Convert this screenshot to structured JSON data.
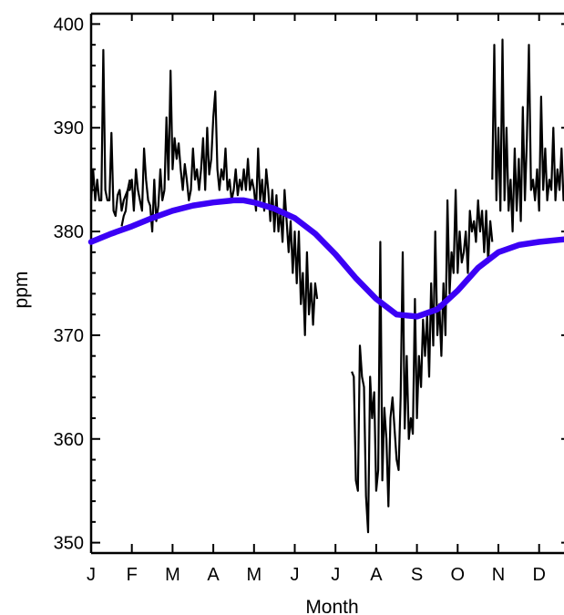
{
  "chart_data": {
    "type": "line",
    "xlabel": "Month",
    "ylabel": "ppm",
    "ylim": [
      349,
      401
    ],
    "xlim": [
      0,
      11.8
    ],
    "x_tick_labels": [
      "J",
      "F",
      "M",
      "A",
      "M",
      "J",
      "J",
      "A",
      "S",
      "O",
      "N",
      "D"
    ],
    "x_tick_values": [
      0,
      1,
      2,
      3,
      4,
      5,
      6,
      7,
      8,
      9,
      10,
      11
    ],
    "y_ticks": [
      350,
      360,
      370,
      380,
      390,
      400
    ],
    "grid": false,
    "legend": "none",
    "series": [
      {
        "style": "thin-black-noisy-line",
        "color": "#000000",
        "segments": [
          {
            "x": [
              0.0,
              0.05,
              0.1,
              0.15,
              0.2,
              0.25,
              0.3,
              0.35,
              0.4,
              0.45,
              0.5,
              0.55,
              0.6,
              0.65,
              0.7,
              0.75,
              0.8,
              0.85,
              0.9,
              0.95
            ],
            "y": [
              383,
              386,
              383,
              385,
              383,
              383,
              397.5,
              384,
              383,
              383,
              389.5,
              382,
              381.5,
              383.5,
              384,
              382,
              383,
              383.5,
              384,
              385
            ]
          },
          {
            "x": [
              0.75,
              0.8,
              0.85,
              0.9,
              0.95,
              1.0,
              1.05,
              1.1,
              1.15,
              1.2,
              1.25,
              1.3,
              1.35,
              1.4,
              1.45,
              1.5,
              1.55,
              1.6,
              1.65,
              1.7,
              1.75,
              1.8
            ],
            "y": [
              380.5,
              381.5,
              382,
              384,
              384,
              385,
              382,
              386,
              384,
              383,
              382,
              388,
              385,
              383,
              382.5,
              380,
              385,
              381,
              382.5,
              386,
              383,
              384
            ]
          },
          {
            "x": [
              1.8,
              1.85,
              1.9,
              1.95,
              2.0,
              2.05,
              2.1,
              2.15,
              2.2,
              2.25,
              2.3,
              2.35,
              2.4,
              2.45,
              2.5,
              2.55,
              2.6,
              2.65,
              2.7,
              2.75,
              2.8,
              2.85,
              2.9,
              2.95,
              3.0,
              3.05,
              3.1,
              3.15,
              3.2,
              3.25,
              3.3,
              3.35,
              3.4,
              3.45,
              3.5,
              3.55,
              3.6,
              3.65,
              3.7,
              3.75,
              3.8,
              3.85,
              3.9,
              3.95,
              4.0,
              4.05,
              4.1,
              4.15,
              4.2,
              4.25,
              4.3,
              4.35,
              4.4,
              4.45,
              4.5,
              4.55,
              4.6,
              4.65,
              4.7,
              4.75,
              4.8,
              4.85,
              4.9,
              4.95,
              5.0,
              5.05,
              5.1,
              5.15,
              5.2,
              5.25,
              5.3,
              5.35,
              5.4,
              5.45,
              5.5,
              5.55
            ],
            "y": [
              384,
              391,
              385,
              395.5,
              386,
              389,
              387,
              388.5,
              386,
              384,
              386.5,
              385,
              383,
              384,
              388,
              385,
              386,
              384,
              386,
              389,
              384,
              390,
              385.5,
              387,
              391,
              393.5,
              386,
              384,
              386,
              385,
              388,
              384,
              385,
              383,
              384,
              386,
              383.5,
              385,
              384,
              386,
              384,
              387,
              384,
              385,
              384,
              382,
              388,
              383,
              385,
              382,
              386,
              384,
              381,
              384,
              380,
              383.5,
              380,
              382,
              379,
              384,
              381,
              378,
              381,
              376,
              380,
              375,
              380,
              373,
              376,
              370,
              378,
              372,
              375,
              371,
              375,
              373.5
            ]
          },
          {
            "x": [
              6.4,
              6.45,
              6.5,
              6.55,
              6.6,
              6.65,
              6.7,
              6.75,
              6.8,
              6.85,
              6.9,
              6.95,
              7.0,
              7.05,
              7.1,
              7.15,
              7.2,
              7.25,
              7.3,
              7.35,
              7.4,
              7.45,
              7.5,
              7.55,
              7.6,
              7.65,
              7.7,
              7.75,
              7.8,
              7.85,
              7.9,
              7.95,
              8.0,
              8.05,
              8.1,
              8.15,
              8.2,
              8.25,
              8.3,
              8.35,
              8.4,
              8.45,
              8.5,
              8.55,
              8.6,
              8.65,
              8.7,
              8.75,
              8.8,
              8.85,
              8.9,
              8.95,
              9.0,
              9.05,
              9.1,
              9.15,
              9.2,
              9.25,
              9.3,
              9.35,
              9.4,
              9.45,
              9.5,
              9.55,
              9.6,
              9.65,
              9.7,
              9.75,
              9.8,
              9.85
            ],
            "y": [
              366.5,
              366,
              356,
              355,
              369,
              366,
              365,
              354.5,
              351,
              366,
              362,
              364.5,
              355,
              357,
              379,
              356,
              363,
              360,
              353.5,
              362,
              364,
              361,
              358,
              357,
              364,
              378,
              361,
              368,
              360,
              362,
              360.5,
              373.5,
              362,
              368,
              365,
              371.5,
              368,
              372,
              366,
              375,
              369,
              380,
              370,
              373,
              368,
              375,
              370,
              383,
              374,
              378,
              376,
              384,
              376,
              380,
              377,
              378,
              380,
              376,
              382,
              380,
              381,
              379,
              383,
              380,
              382,
              378,
              382,
              377,
              381,
              379
            ]
          },
          {
            "x": [
              9.85,
              9.9,
              9.95,
              10.0,
              10.05,
              10.1,
              10.15,
              10.2,
              10.25,
              10.3,
              10.35,
              10.4,
              10.45,
              10.5,
              10.55,
              10.6,
              10.65,
              10.7,
              10.75,
              10.8,
              10.85,
              10.9,
              10.95,
              11.0,
              11.05,
              11.1,
              11.15,
              11.2,
              11.25,
              11.3,
              11.35,
              11.4,
              11.45,
              11.5,
              11.55,
              11.6,
              11.65,
              11.7,
              11.75,
              11.8
            ],
            "y": [
              385,
              398,
              383,
              390,
              382,
              398.5,
              383,
              390,
              382,
              385,
              380,
              388,
              382,
              387,
              381,
              392,
              383,
              389,
              398,
              384,
              385,
              383,
              386,
              382,
              393,
              384,
              388,
              383,
              385,
              384,
              390,
              383,
              386,
              384,
              388,
              383,
              385,
              383,
              386,
              383
            ]
          }
        ]
      },
      {
        "style": "thick-blue-smooth-curve",
        "color": "#3b00f5",
        "x": [
          0.0,
          0.5,
          1.0,
          1.5,
          2.0,
          2.5,
          3.0,
          3.5,
          3.75,
          4.0,
          4.5,
          5.0,
          5.5,
          6.0,
          6.5,
          7.0,
          7.5,
          8.0,
          8.5,
          9.0,
          9.5,
          10.0,
          10.5,
          11.0,
          11.5,
          11.8
        ],
        "y": [
          379,
          379.8,
          380.5,
          381.3,
          382,
          382.5,
          382.8,
          383,
          383,
          382.8,
          382.2,
          381.3,
          379.8,
          377.8,
          375.5,
          373.5,
          372,
          371.8,
          372.5,
          374.3,
          376.5,
          378,
          378.7,
          379,
          379.2,
          379.3
        ]
      }
    ]
  }
}
